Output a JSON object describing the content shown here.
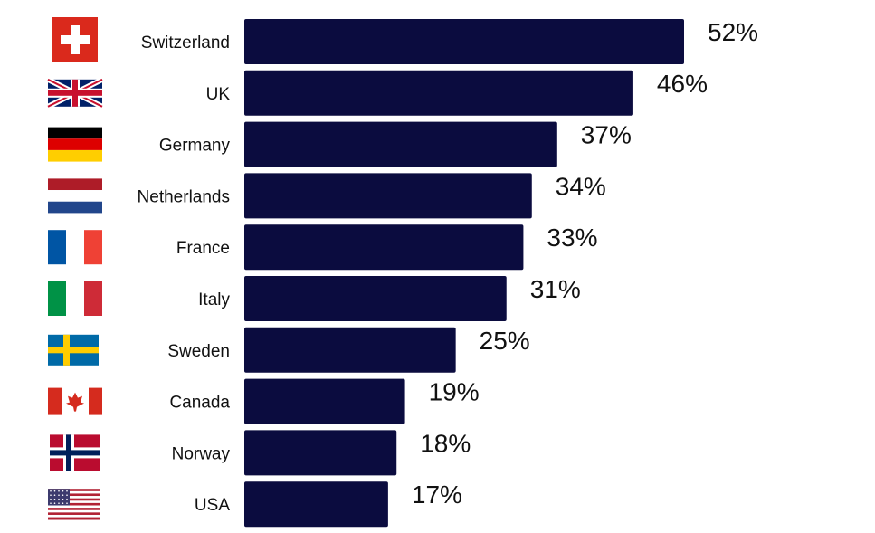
{
  "chart_data": {
    "type": "bar",
    "orientation": "horizontal",
    "categories": [
      "Switzerland",
      "UK",
      "Germany",
      "Netherlands",
      "France",
      "Italy",
      "Sweden",
      "Canada",
      "Norway",
      "USA"
    ],
    "values": [
      52,
      46,
      37,
      34,
      33,
      31,
      25,
      19,
      18,
      17
    ],
    "value_labels": [
      "52%",
      "46%",
      "37%",
      "34%",
      "33%",
      "31%",
      "25%",
      "19%",
      "18%",
      "17%"
    ],
    "flags": [
      "switzerland-flag",
      "uk-flag",
      "germany-flag",
      "netherlands-flag",
      "france-flag",
      "italy-flag",
      "sweden-flag",
      "canada-flag",
      "norway-flag",
      "usa-flag"
    ],
    "bar_color": "#0b0c3f",
    "xlim": [
      0,
      52
    ],
    "title": "",
    "xlabel": "",
    "ylabel": "",
    "grid": false,
    "legend": "none"
  }
}
